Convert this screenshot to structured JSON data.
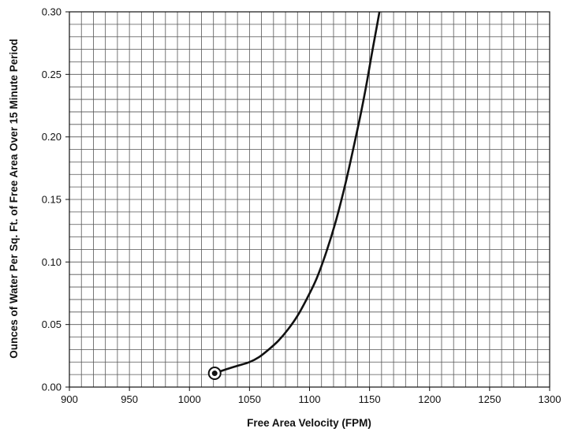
{
  "chart_data": {
    "type": "line",
    "title": "",
    "xlabel": "Free Area Velocity (FPM)",
    "ylabel": "Ounces of Water Per Sq. Ft. of Free Area Over 15 Minute Period",
    "xlim": [
      900,
      1300
    ],
    "ylim": [
      0.0,
      0.3
    ],
    "x_ticks": [
      "900",
      "950",
      "1000",
      "1050",
      "1100",
      "1150",
      "1200",
      "1250",
      "1300"
    ],
    "y_ticks": [
      "0.00",
      "0.05",
      "0.10",
      "0.15",
      "0.20",
      "0.25",
      "0.30"
    ],
    "minor_grid": {
      "x_step": 10,
      "y_step": 0.01
    },
    "grid": true,
    "series": [
      {
        "x": [
          1021,
          1030,
          1040,
          1050,
          1058,
          1066,
          1074,
          1082,
          1090,
          1098,
          1106,
          1114,
          1122,
          1130,
          1137,
          1143,
          1148,
          1152,
          1156,
          1159
        ],
        "y": [
          0.011,
          0.014,
          0.017,
          0.02,
          0.024,
          0.03,
          0.037,
          0.046,
          0.057,
          0.071,
          0.087,
          0.108,
          0.133,
          0.163,
          0.193,
          0.22,
          0.245,
          0.267,
          0.288,
          0.304
        ],
        "color": "#111111"
      }
    ],
    "annotations": [
      {
        "type": "circled-point",
        "x": 1021,
        "y": 0.011
      }
    ]
  }
}
